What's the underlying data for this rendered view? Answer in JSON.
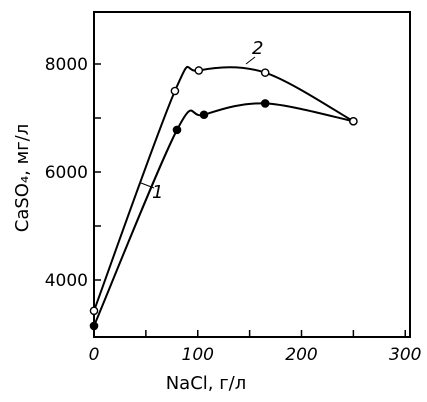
{
  "chart_data": {
    "type": "line",
    "xlabel": "NaCl, г/л",
    "ylabel": "CaSO₄, мг/л",
    "xlim": [
      0,
      300
    ],
    "ylim": [
      3000,
      8900
    ],
    "x_ticks": [
      "0",
      "100",
      "200",
      "300"
    ],
    "y_ticks": [
      "4000",
      "6000",
      "8000"
    ],
    "grid": false,
    "series": [
      {
        "name": "1",
        "marker": "filled-circle",
        "color": "#000000",
        "points": [
          {
            "x": 0,
            "y": 3150
          },
          {
            "x": 80,
            "y": 6780
          },
          {
            "x": 106,
            "y": 7060
          },
          {
            "x": 165,
            "y": 7270
          },
          {
            "x": 250,
            "y": 6940
          }
        ]
      },
      {
        "name": "2",
        "marker": "open-circle",
        "color": "#000000",
        "points": [
          {
            "x": 0,
            "y": 3430
          },
          {
            "x": 78,
            "y": 7500
          },
          {
            "x": 101,
            "y": 7880
          },
          {
            "x": 165,
            "y": 7840
          },
          {
            "x": 250,
            "y": 6940
          }
        ]
      }
    ]
  }
}
